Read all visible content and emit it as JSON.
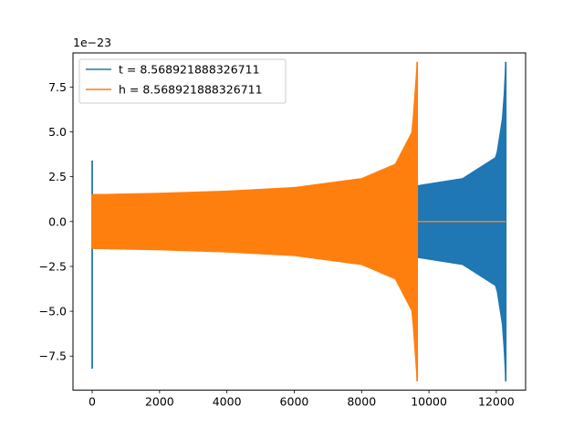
{
  "chart_data": {
    "type": "line",
    "title": "",
    "xlabel": "",
    "ylabel": "",
    "y_offset_text": "1e−23",
    "y_multiplier": 1e-23,
    "xlim": [
      -570,
      12870
    ],
    "ylim": [
      -9.4,
      9.4
    ],
    "xticks": [
      0,
      2000,
      4000,
      6000,
      8000,
      10000,
      12000
    ],
    "xtick_labels": [
      "0",
      "2000",
      "4000",
      "6000",
      "8000",
      "10000",
      "12000"
    ],
    "yticks": [
      -7.5,
      -5.0,
      -2.5,
      0.0,
      2.5,
      5.0,
      7.5
    ],
    "ytick_labels": [
      "−7.5",
      "−5.0",
      "−2.5",
      "0.0",
      "2.5",
      "5.0",
      "7.5"
    ],
    "grid": false,
    "legend_position": "upper-left",
    "series": [
      {
        "name": "t = 8.568921888326711",
        "color": "#1f77b4",
        "start_x": 0,
        "start_spike": [
          3.4,
          -8.2
        ],
        "end_x": 12280,
        "amplitude_envelope": [
          {
            "x": 0,
            "amp": 1.5
          },
          {
            "x": 2000,
            "amp": 1.55
          },
          {
            "x": 6000,
            "amp": 1.75
          },
          {
            "x": 9650,
            "amp": 2.0
          },
          {
            "x": 11000,
            "amp": 2.4
          },
          {
            "x": 12000,
            "amp": 3.6
          },
          {
            "x": 12200,
            "amp": 6.0
          },
          {
            "x": 12280,
            "amp": 8.9
          }
        ]
      },
      {
        "name": "h = 8.568921888326711",
        "color": "#ff7f0e",
        "start_x": 0,
        "start_spike": [
          1.5,
          -1.5
        ],
        "end_x": 9650,
        "after_end_value": 0.0,
        "after_end_until_x": 12280,
        "amplitude_envelope": [
          {
            "x": 0,
            "amp": 1.5
          },
          {
            "x": 2000,
            "amp": 1.58
          },
          {
            "x": 4000,
            "amp": 1.7
          },
          {
            "x": 6000,
            "amp": 1.9
          },
          {
            "x": 8000,
            "amp": 2.4
          },
          {
            "x": 9000,
            "amp": 3.2
          },
          {
            "x": 9500,
            "amp": 5.0
          },
          {
            "x": 9650,
            "amp": 8.9
          }
        ]
      }
    ]
  }
}
